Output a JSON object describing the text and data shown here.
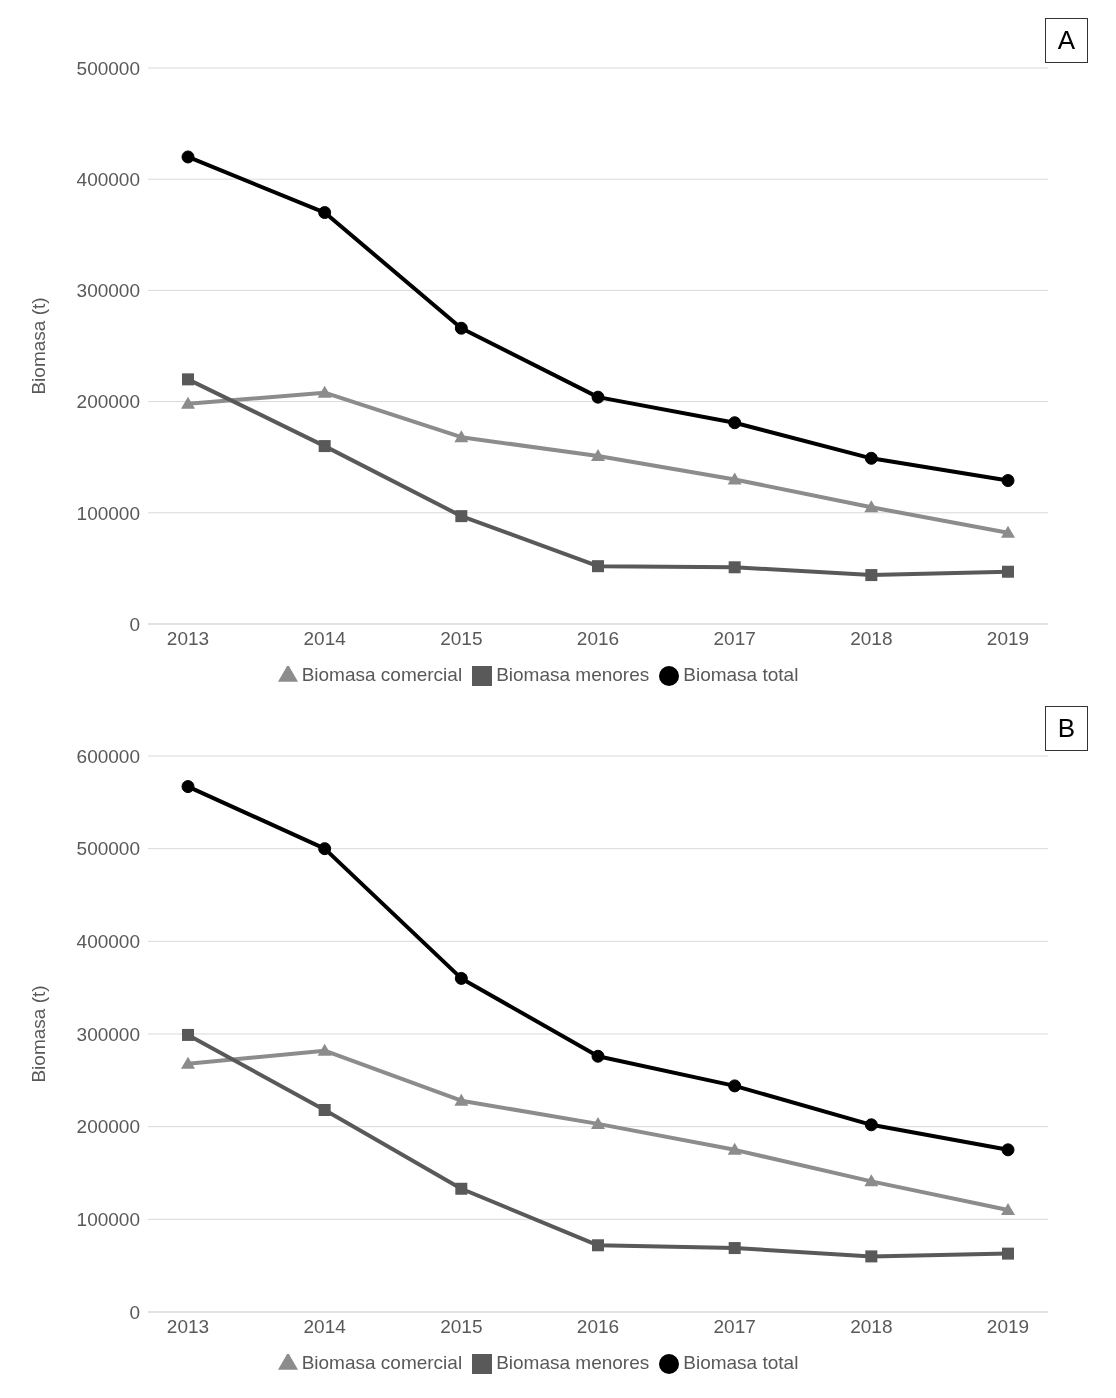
{
  "chart_data": [
    {
      "type": "line",
      "ylabel": "Biomasa (t)",
      "annotations": [
        "A"
      ],
      "categories": [
        "2013",
        "2014",
        "2015",
        "2016",
        "2017",
        "2018",
        "2019"
      ],
      "ylim": [
        0,
        500000
      ],
      "yticks": [
        0,
        100000,
        200000,
        300000,
        400000,
        500000
      ],
      "grid": "y",
      "legend": "bottom",
      "series": [
        {
          "name": "Biomasa total",
          "color": "#000000",
          "marker": "circle",
          "values": [
            420000,
            370000,
            266000,
            204000,
            181000,
            149000,
            129000
          ]
        },
        {
          "name": "Biomasa comercial",
          "color": "#8c8c8c",
          "marker": "triangle",
          "values": [
            198000,
            208000,
            168000,
            151000,
            130000,
            105000,
            82000
          ]
        },
        {
          "name": "Biomasa menores",
          "color": "#595959",
          "marker": "square",
          "values": [
            220000,
            160000,
            97000,
            52000,
            51000,
            44000,
            47000
          ]
        }
      ]
    },
    {
      "type": "line",
      "ylabel": "Biomasa (t)",
      "annotations": [
        "B"
      ],
      "categories": [
        "2013",
        "2014",
        "2015",
        "2016",
        "2017",
        "2018",
        "2019"
      ],
      "ylim": [
        0,
        600000
      ],
      "yticks": [
        0,
        100000,
        200000,
        300000,
        400000,
        500000,
        600000
      ],
      "grid": "y",
      "legend": "bottom",
      "series": [
        {
          "name": "Biomasa total",
          "color": "#000000",
          "marker": "circle",
          "values": [
            567000,
            500000,
            360000,
            276000,
            244000,
            202000,
            175000
          ]
        },
        {
          "name": "Biomasa comercial",
          "color": "#8c8c8c",
          "marker": "triangle",
          "values": [
            268000,
            282000,
            228000,
            203000,
            175000,
            141000,
            110000
          ]
        },
        {
          "name": "Biomasa menores",
          "color": "#595959",
          "marker": "square",
          "values": [
            299000,
            218000,
            133000,
            72000,
            69000,
            60000,
            63000
          ]
        }
      ]
    }
  ]
}
